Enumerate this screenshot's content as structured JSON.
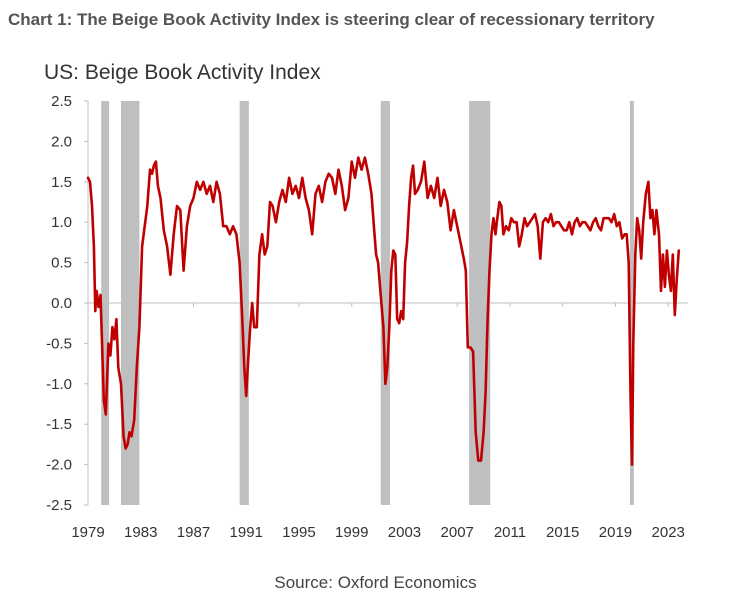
{
  "header": {
    "chart_number": "Chart 1:",
    "headline": "The Beige Book Activity Index is steering clear of recessionary territory"
  },
  "footer": {
    "source": "Source: Oxford Economics"
  },
  "colors": {
    "series": "#c00000",
    "recession": "#bfbfbf",
    "axis": "#bfbfbf",
    "text": "#333333"
  },
  "chart_data": {
    "type": "line",
    "title": "US: Beige Book Activity Index",
    "xlabel": "",
    "ylabel": "",
    "xlim": [
      1979,
      2024.5
    ],
    "ylim": [
      -2.5,
      2.5
    ],
    "y_ticks": [
      2.5,
      2.0,
      1.5,
      1.0,
      0.5,
      0.0,
      -0.5,
      -1.0,
      -1.5,
      -2.0,
      -2.5
    ],
    "y_tick_labels": [
      "2.5",
      "2.0",
      "1.5",
      "1.0",
      "0.5",
      "0.0",
      "-0.5",
      "-1.0",
      "-1.5",
      "-2.0",
      "-2.5"
    ],
    "x_ticks": [
      1979,
      1983,
      1987,
      1991,
      1995,
      1999,
      2003,
      2007,
      2011,
      2015,
      2019,
      2023
    ],
    "x_tick_labels": [
      "1979",
      "1983",
      "1987",
      "1991",
      "1995",
      "1999",
      "2003",
      "2007",
      "2011",
      "2015",
      "2019",
      "2023"
    ],
    "recessions": [
      [
        1980.0,
        1980.6
      ],
      [
        1981.5,
        1982.9
      ],
      [
        1990.5,
        1991.2
      ],
      [
        2001.2,
        2001.9
      ],
      [
        2007.9,
        2009.5
      ],
      [
        2020.1,
        2020.4
      ]
    ],
    "series": [
      {
        "name": "Beige Book Activity Index",
        "points": [
          [
            1979.0,
            1.55
          ],
          [
            1979.15,
            1.5
          ],
          [
            1979.3,
            1.2
          ],
          [
            1979.45,
            0.7
          ],
          [
            1979.55,
            -0.1
          ],
          [
            1979.65,
            0.15
          ],
          [
            1979.8,
            -0.05
          ],
          [
            1979.95,
            0.1
          ],
          [
            1980.05,
            -0.4
          ],
          [
            1980.2,
            -1.2
          ],
          [
            1980.35,
            -1.38
          ],
          [
            1980.55,
            -0.5
          ],
          [
            1980.7,
            -0.65
          ],
          [
            1980.85,
            -0.3
          ],
          [
            1981.0,
            -0.45
          ],
          [
            1981.15,
            -0.2
          ],
          [
            1981.3,
            -0.8
          ],
          [
            1981.5,
            -1.0
          ],
          [
            1981.7,
            -1.65
          ],
          [
            1981.85,
            -1.8
          ],
          [
            1982.0,
            -1.75
          ],
          [
            1982.15,
            -1.6
          ],
          [
            1982.3,
            -1.65
          ],
          [
            1982.5,
            -1.45
          ],
          [
            1982.7,
            -0.8
          ],
          [
            1982.9,
            -0.3
          ],
          [
            1983.1,
            0.7
          ],
          [
            1983.3,
            0.95
          ],
          [
            1983.5,
            1.2
          ],
          [
            1983.7,
            1.65
          ],
          [
            1983.85,
            1.6
          ],
          [
            1984.0,
            1.7
          ],
          [
            1984.15,
            1.75
          ],
          [
            1984.3,
            1.45
          ],
          [
            1984.5,
            1.3
          ],
          [
            1984.75,
            0.9
          ],
          [
            1985.0,
            0.7
          ],
          [
            1985.25,
            0.35
          ],
          [
            1985.5,
            0.85
          ],
          [
            1985.75,
            1.2
          ],
          [
            1986.0,
            1.15
          ],
          [
            1986.25,
            0.4
          ],
          [
            1986.5,
            0.95
          ],
          [
            1986.75,
            1.2
          ],
          [
            1987.0,
            1.3
          ],
          [
            1987.25,
            1.5
          ],
          [
            1987.5,
            1.4
          ],
          [
            1987.75,
            1.5
          ],
          [
            1988.0,
            1.35
          ],
          [
            1988.25,
            1.45
          ],
          [
            1988.5,
            1.25
          ],
          [
            1988.75,
            1.5
          ],
          [
            1989.0,
            1.35
          ],
          [
            1989.25,
            0.95
          ],
          [
            1989.5,
            0.95
          ],
          [
            1989.75,
            0.85
          ],
          [
            1990.0,
            0.95
          ],
          [
            1990.25,
            0.85
          ],
          [
            1990.5,
            0.5
          ],
          [
            1990.7,
            -0.2
          ],
          [
            1990.85,
            -0.8
          ],
          [
            1991.0,
            -1.15
          ],
          [
            1991.15,
            -0.7
          ],
          [
            1991.3,
            -0.3
          ],
          [
            1991.45,
            0.0
          ],
          [
            1991.6,
            -0.3
          ],
          [
            1991.8,
            -0.3
          ],
          [
            1992.0,
            0.6
          ],
          [
            1992.2,
            0.85
          ],
          [
            1992.4,
            0.6
          ],
          [
            1992.6,
            0.7
          ],
          [
            1992.8,
            1.25
          ],
          [
            1993.0,
            1.2
          ],
          [
            1993.25,
            1.0
          ],
          [
            1993.5,
            1.25
          ],
          [
            1993.75,
            1.4
          ],
          [
            1994.0,
            1.25
          ],
          [
            1994.25,
            1.55
          ],
          [
            1994.5,
            1.35
          ],
          [
            1994.75,
            1.45
          ],
          [
            1995.0,
            1.3
          ],
          [
            1995.25,
            1.55
          ],
          [
            1995.5,
            1.3
          ],
          [
            1995.75,
            1.15
          ],
          [
            1996.0,
            0.85
          ],
          [
            1996.25,
            1.35
          ],
          [
            1996.5,
            1.45
          ],
          [
            1996.75,
            1.25
          ],
          [
            1997.0,
            1.5
          ],
          [
            1997.25,
            1.6
          ],
          [
            1997.5,
            1.55
          ],
          [
            1997.75,
            1.35
          ],
          [
            1998.0,
            1.65
          ],
          [
            1998.25,
            1.45
          ],
          [
            1998.5,
            1.15
          ],
          [
            1998.75,
            1.3
          ],
          [
            1999.0,
            1.75
          ],
          [
            1999.25,
            1.55
          ],
          [
            1999.5,
            1.8
          ],
          [
            1999.75,
            1.65
          ],
          [
            2000.0,
            1.8
          ],
          [
            2000.25,
            1.6
          ],
          [
            2000.5,
            1.35
          ],
          [
            2000.7,
            0.9
          ],
          [
            2000.85,
            0.6
          ],
          [
            2001.0,
            0.5
          ],
          [
            2001.2,
            0.1
          ],
          [
            2001.4,
            -0.3
          ],
          [
            2001.55,
            -1.0
          ],
          [
            2001.7,
            -0.8
          ],
          [
            2001.85,
            -0.3
          ],
          [
            2002.0,
            0.4
          ],
          [
            2002.15,
            0.65
          ],
          [
            2002.3,
            0.6
          ],
          [
            2002.45,
            -0.2
          ],
          [
            2002.6,
            -0.25
          ],
          [
            2002.75,
            -0.1
          ],
          [
            2002.9,
            -0.2
          ],
          [
            2003.05,
            0.5
          ],
          [
            2003.2,
            0.75
          ],
          [
            2003.35,
            1.2
          ],
          [
            2003.5,
            1.55
          ],
          [
            2003.65,
            1.7
          ],
          [
            2003.8,
            1.35
          ],
          [
            2004.0,
            1.4
          ],
          [
            2004.25,
            1.5
          ],
          [
            2004.5,
            1.75
          ],
          [
            2004.75,
            1.3
          ],
          [
            2005.0,
            1.45
          ],
          [
            2005.25,
            1.3
          ],
          [
            2005.5,
            1.55
          ],
          [
            2005.75,
            1.2
          ],
          [
            2006.0,
            1.4
          ],
          [
            2006.25,
            1.25
          ],
          [
            2006.5,
            0.9
          ],
          [
            2006.75,
            1.15
          ],
          [
            2007.0,
            0.95
          ],
          [
            2007.25,
            0.75
          ],
          [
            2007.5,
            0.55
          ],
          [
            2007.65,
            0.4
          ],
          [
            2007.8,
            -0.55
          ],
          [
            2008.0,
            -0.55
          ],
          [
            2008.2,
            -0.6
          ],
          [
            2008.4,
            -1.6
          ],
          [
            2008.6,
            -1.95
          ],
          [
            2008.8,
            -1.95
          ],
          [
            2009.0,
            -1.6
          ],
          [
            2009.15,
            -1.1
          ],
          [
            2009.3,
            -0.2
          ],
          [
            2009.45,
            0.4
          ],
          [
            2009.6,
            0.85
          ],
          [
            2009.75,
            1.05
          ],
          [
            2009.9,
            0.85
          ],
          [
            2010.0,
            1.0
          ],
          [
            2010.2,
            1.25
          ],
          [
            2010.35,
            1.2
          ],
          [
            2010.5,
            0.85
          ],
          [
            2010.7,
            0.95
          ],
          [
            2010.9,
            0.9
          ],
          [
            2011.1,
            1.05
          ],
          [
            2011.3,
            1.0
          ],
          [
            2011.5,
            1.0
          ],
          [
            2011.7,
            0.7
          ],
          [
            2011.9,
            0.85
          ],
          [
            2012.1,
            1.05
          ],
          [
            2012.3,
            0.95
          ],
          [
            2012.5,
            1.0
          ],
          [
            2012.7,
            1.05
          ],
          [
            2012.9,
            1.1
          ],
          [
            2013.1,
            0.95
          ],
          [
            2013.3,
            0.55
          ],
          [
            2013.5,
            1.0
          ],
          [
            2013.7,
            1.05
          ],
          [
            2013.9,
            1.0
          ],
          [
            2014.1,
            1.1
          ],
          [
            2014.3,
            0.95
          ],
          [
            2014.5,
            1.0
          ],
          [
            2014.7,
            1.0
          ],
          [
            2014.9,
            0.95
          ],
          [
            2015.1,
            0.9
          ],
          [
            2015.3,
            0.9
          ],
          [
            2015.5,
            1.0
          ],
          [
            2015.7,
            0.85
          ],
          [
            2015.9,
            1.0
          ],
          [
            2016.1,
            1.05
          ],
          [
            2016.3,
            0.95
          ],
          [
            2016.5,
            1.0
          ],
          [
            2016.7,
            1.0
          ],
          [
            2016.9,
            0.95
          ],
          [
            2017.1,
            0.9
          ],
          [
            2017.3,
            1.0
          ],
          [
            2017.5,
            1.05
          ],
          [
            2017.7,
            0.95
          ],
          [
            2017.9,
            0.9
          ],
          [
            2018.1,
            1.05
          ],
          [
            2018.3,
            1.05
          ],
          [
            2018.5,
            1.05
          ],
          [
            2018.7,
            1.0
          ],
          [
            2018.9,
            1.1
          ],
          [
            2019.1,
            0.95
          ],
          [
            2019.3,
            1.0
          ],
          [
            2019.5,
            0.8
          ],
          [
            2019.7,
            0.85
          ],
          [
            2019.85,
            0.85
          ],
          [
            2020.0,
            0.5
          ],
          [
            2020.15,
            -1.2
          ],
          [
            2020.25,
            -2.0
          ],
          [
            2020.35,
            -0.5
          ],
          [
            2020.5,
            0.6
          ],
          [
            2020.65,
            1.05
          ],
          [
            2020.8,
            0.9
          ],
          [
            2020.95,
            0.55
          ],
          [
            2021.1,
            1.0
          ],
          [
            2021.3,
            1.35
          ],
          [
            2021.5,
            1.5
          ],
          [
            2021.65,
            1.05
          ],
          [
            2021.8,
            1.15
          ],
          [
            2021.95,
            0.85
          ],
          [
            2022.1,
            1.15
          ],
          [
            2022.3,
            0.85
          ],
          [
            2022.45,
            0.15
          ],
          [
            2022.6,
            0.6
          ],
          [
            2022.75,
            0.2
          ],
          [
            2022.9,
            0.65
          ],
          [
            2023.05,
            0.35
          ],
          [
            2023.2,
            0.15
          ],
          [
            2023.35,
            0.6
          ],
          [
            2023.5,
            -0.15
          ],
          [
            2023.65,
            0.3
          ],
          [
            2023.8,
            0.65
          ]
        ]
      }
    ]
  }
}
